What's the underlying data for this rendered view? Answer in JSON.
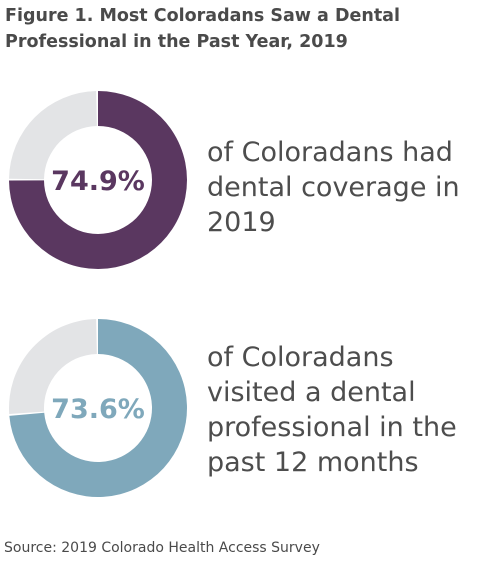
{
  "title": "Figure 1. Most Coloradans Saw a Dental Professional in the Past Year, 2019",
  "source": "Source: 2019 Colorado Health Access Survey",
  "colors": {
    "coverage": "#5a3760",
    "visited": "#7fa8bb",
    "remainder": "#e3e4e6"
  },
  "chart_data": [
    {
      "type": "pie",
      "value": 74.9,
      "label": "74.9%",
      "description": "of Coloradans had dental coverage in 2019"
    },
    {
      "type": "pie",
      "value": 73.6,
      "label": "73.6%",
      "description": "of Coloradans visited a dental professional in the past 12 months"
    }
  ]
}
